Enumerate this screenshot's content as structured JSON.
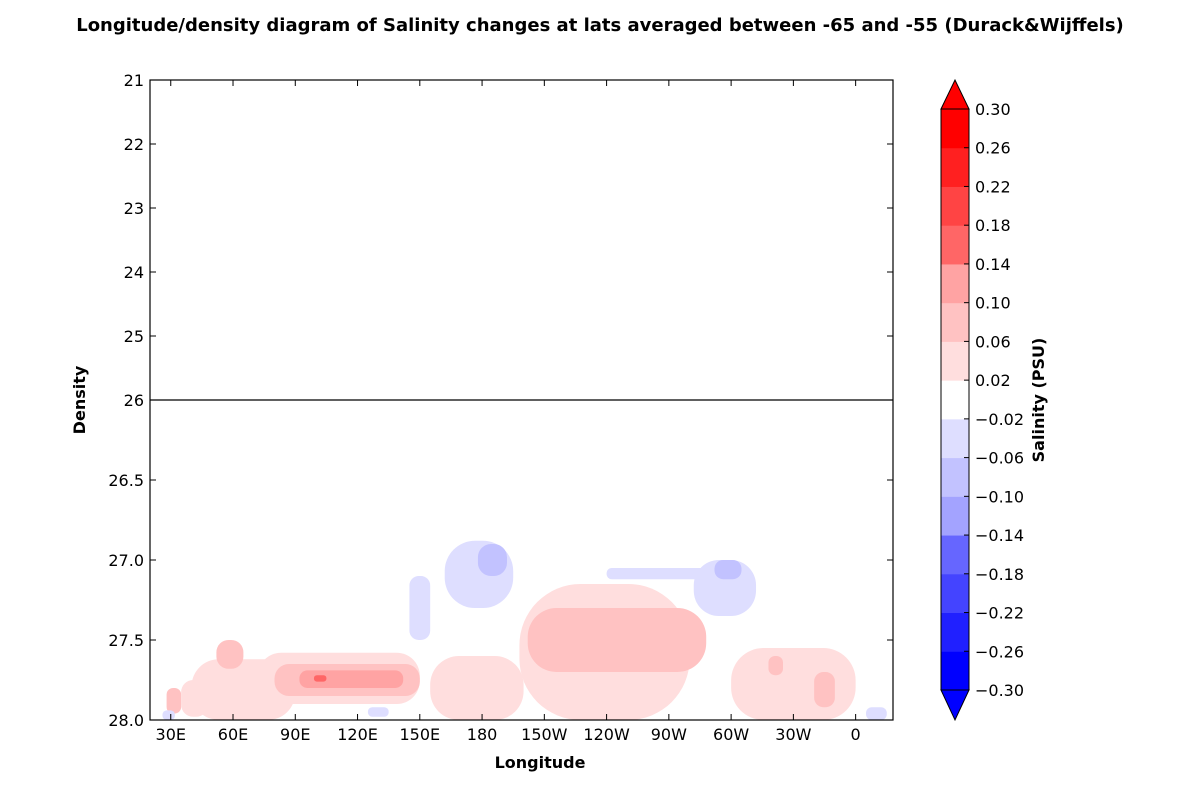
{
  "chart_data": {
    "type": "heatmap",
    "title": "Longitude/density diagram of Salinity changes at lats averaged between -65 and -55 (Durack&Wijffels)",
    "xlabel": "Longitude",
    "ylabel": "Density",
    "x_ticks": [
      "30E",
      "60E",
      "90E",
      "120E",
      "150E",
      "180",
      "150W",
      "120W",
      "90W",
      "60W",
      "30W",
      "0"
    ],
    "x_tick_values": [
      30,
      60,
      90,
      120,
      150,
      180,
      210,
      240,
      270,
      300,
      330,
      360
    ],
    "xlim": [
      20,
      378
    ],
    "upper_panel": {
      "ylim": [
        21,
        26
      ],
      "y_ticks": [
        "21",
        "22",
        "23",
        "24",
        "25",
        "26"
      ]
    },
    "lower_panel": {
      "ylim": [
        26,
        28
      ],
      "y_ticks": [
        "26.5",
        "27.0",
        "27.5",
        "28.0"
      ],
      "y_tick_values": [
        26.5,
        27.0,
        27.5,
        28.0
      ]
    },
    "colorbar": {
      "label": "Salinity (PSU)",
      "levels": [
        -0.3,
        -0.26,
        -0.22,
        -0.18,
        -0.14,
        -0.1,
        -0.06,
        -0.02,
        0.02,
        0.06,
        0.1,
        0.14,
        0.18,
        0.22,
        0.26,
        0.3
      ],
      "tick_labels": [
        "0.30",
        "0.26",
        "0.22",
        "0.18",
        "0.14",
        "0.10",
        "0.06",
        "0.02",
        "−0.02",
        "−0.06",
        "−0.10",
        "−0.14",
        "−0.18",
        "−0.22",
        "−0.26",
        "−0.30"
      ],
      "extend": "both",
      "colors_bottom_to_top": [
        "#0000ff",
        "#2020ff",
        "#4444ff",
        "#6666ff",
        "#a3a3ff",
        "#c2c2ff",
        "#dedeff",
        "#ffffff",
        "#ffdede",
        "#ffc2c2",
        "#ffa3a3",
        "#ff6666",
        "#ff4444",
        "#ff2020",
        "#ff0000"
      ],
      "under_color": "#0000ff",
      "over_color": "#ff0000"
    },
    "regions": [
      {
        "lon_min": 28,
        "lon_max": 35,
        "dens_min": 27.8,
        "dens_max": 27.96,
        "value": 0.08
      },
      {
        "lon_min": 35,
        "lon_max": 48,
        "dens_min": 27.75,
        "dens_max": 27.98,
        "value": 0.04
      },
      {
        "lon_min": 26,
        "lon_max": 32,
        "dens_min": 27.94,
        "dens_max": 28.0,
        "value": -0.04
      },
      {
        "lon_min": 40,
        "lon_max": 90,
        "dens_min": 27.62,
        "dens_max": 28.0,
        "value": 0.04
      },
      {
        "lon_min": 52,
        "lon_max": 65,
        "dens_min": 27.5,
        "dens_max": 27.68,
        "value": 0.08
      },
      {
        "lon_min": 72,
        "lon_max": 150,
        "dens_min": 27.58,
        "dens_max": 27.9,
        "value": 0.04
      },
      {
        "lon_min": 80,
        "lon_max": 150,
        "dens_min": 27.65,
        "dens_max": 27.85,
        "value": 0.08
      },
      {
        "lon_min": 92,
        "lon_max": 142,
        "dens_min": 27.69,
        "dens_max": 27.8,
        "value": 0.12
      },
      {
        "lon_min": 99,
        "lon_max": 105,
        "dens_min": 27.72,
        "dens_max": 27.76,
        "value": 0.16
      },
      {
        "lon_min": 145,
        "lon_max": 155,
        "dens_min": 27.1,
        "dens_max": 27.5,
        "value": -0.04
      },
      {
        "lon_min": 155,
        "lon_max": 200,
        "dens_min": 27.6,
        "dens_max": 28.0,
        "value": 0.04
      },
      {
        "lon_min": 162,
        "lon_max": 195,
        "dens_min": 26.88,
        "dens_max": 27.3,
        "value": -0.04
      },
      {
        "lon_min": 178,
        "lon_max": 192,
        "dens_min": 26.9,
        "dens_max": 27.1,
        "value": -0.08
      },
      {
        "lon_min": 198,
        "lon_max": 280,
        "dens_min": 27.15,
        "dens_max": 28.0,
        "value": 0.04
      },
      {
        "lon_min": 202,
        "lon_max": 288,
        "dens_min": 27.3,
        "dens_max": 27.7,
        "value": 0.08
      },
      {
        "lon_min": 240,
        "lon_max": 295,
        "dens_min": 27.05,
        "dens_max": 27.12,
        "value": -0.04
      },
      {
        "lon_min": 282,
        "lon_max": 312,
        "dens_min": 27.0,
        "dens_max": 27.35,
        "value": -0.04
      },
      {
        "lon_min": 292,
        "lon_max": 305,
        "dens_min": 27.0,
        "dens_max": 27.12,
        "value": -0.08
      },
      {
        "lon_min": 300,
        "lon_max": 360,
        "dens_min": 27.55,
        "dens_max": 28.0,
        "value": 0.04
      },
      {
        "lon_min": 318,
        "lon_max": 325,
        "dens_min": 27.6,
        "dens_max": 27.72,
        "value": 0.08
      },
      {
        "lon_min": 340,
        "lon_max": 350,
        "dens_min": 27.7,
        "dens_max": 27.92,
        "value": 0.08
      },
      {
        "lon_min": 125,
        "lon_max": 135,
        "dens_min": 27.92,
        "dens_max": 27.98,
        "value": -0.04
      },
      {
        "lon_min": 365,
        "lon_max": 375,
        "dens_min": 27.92,
        "dens_max": 28.0,
        "value": -0.04
      }
    ]
  }
}
